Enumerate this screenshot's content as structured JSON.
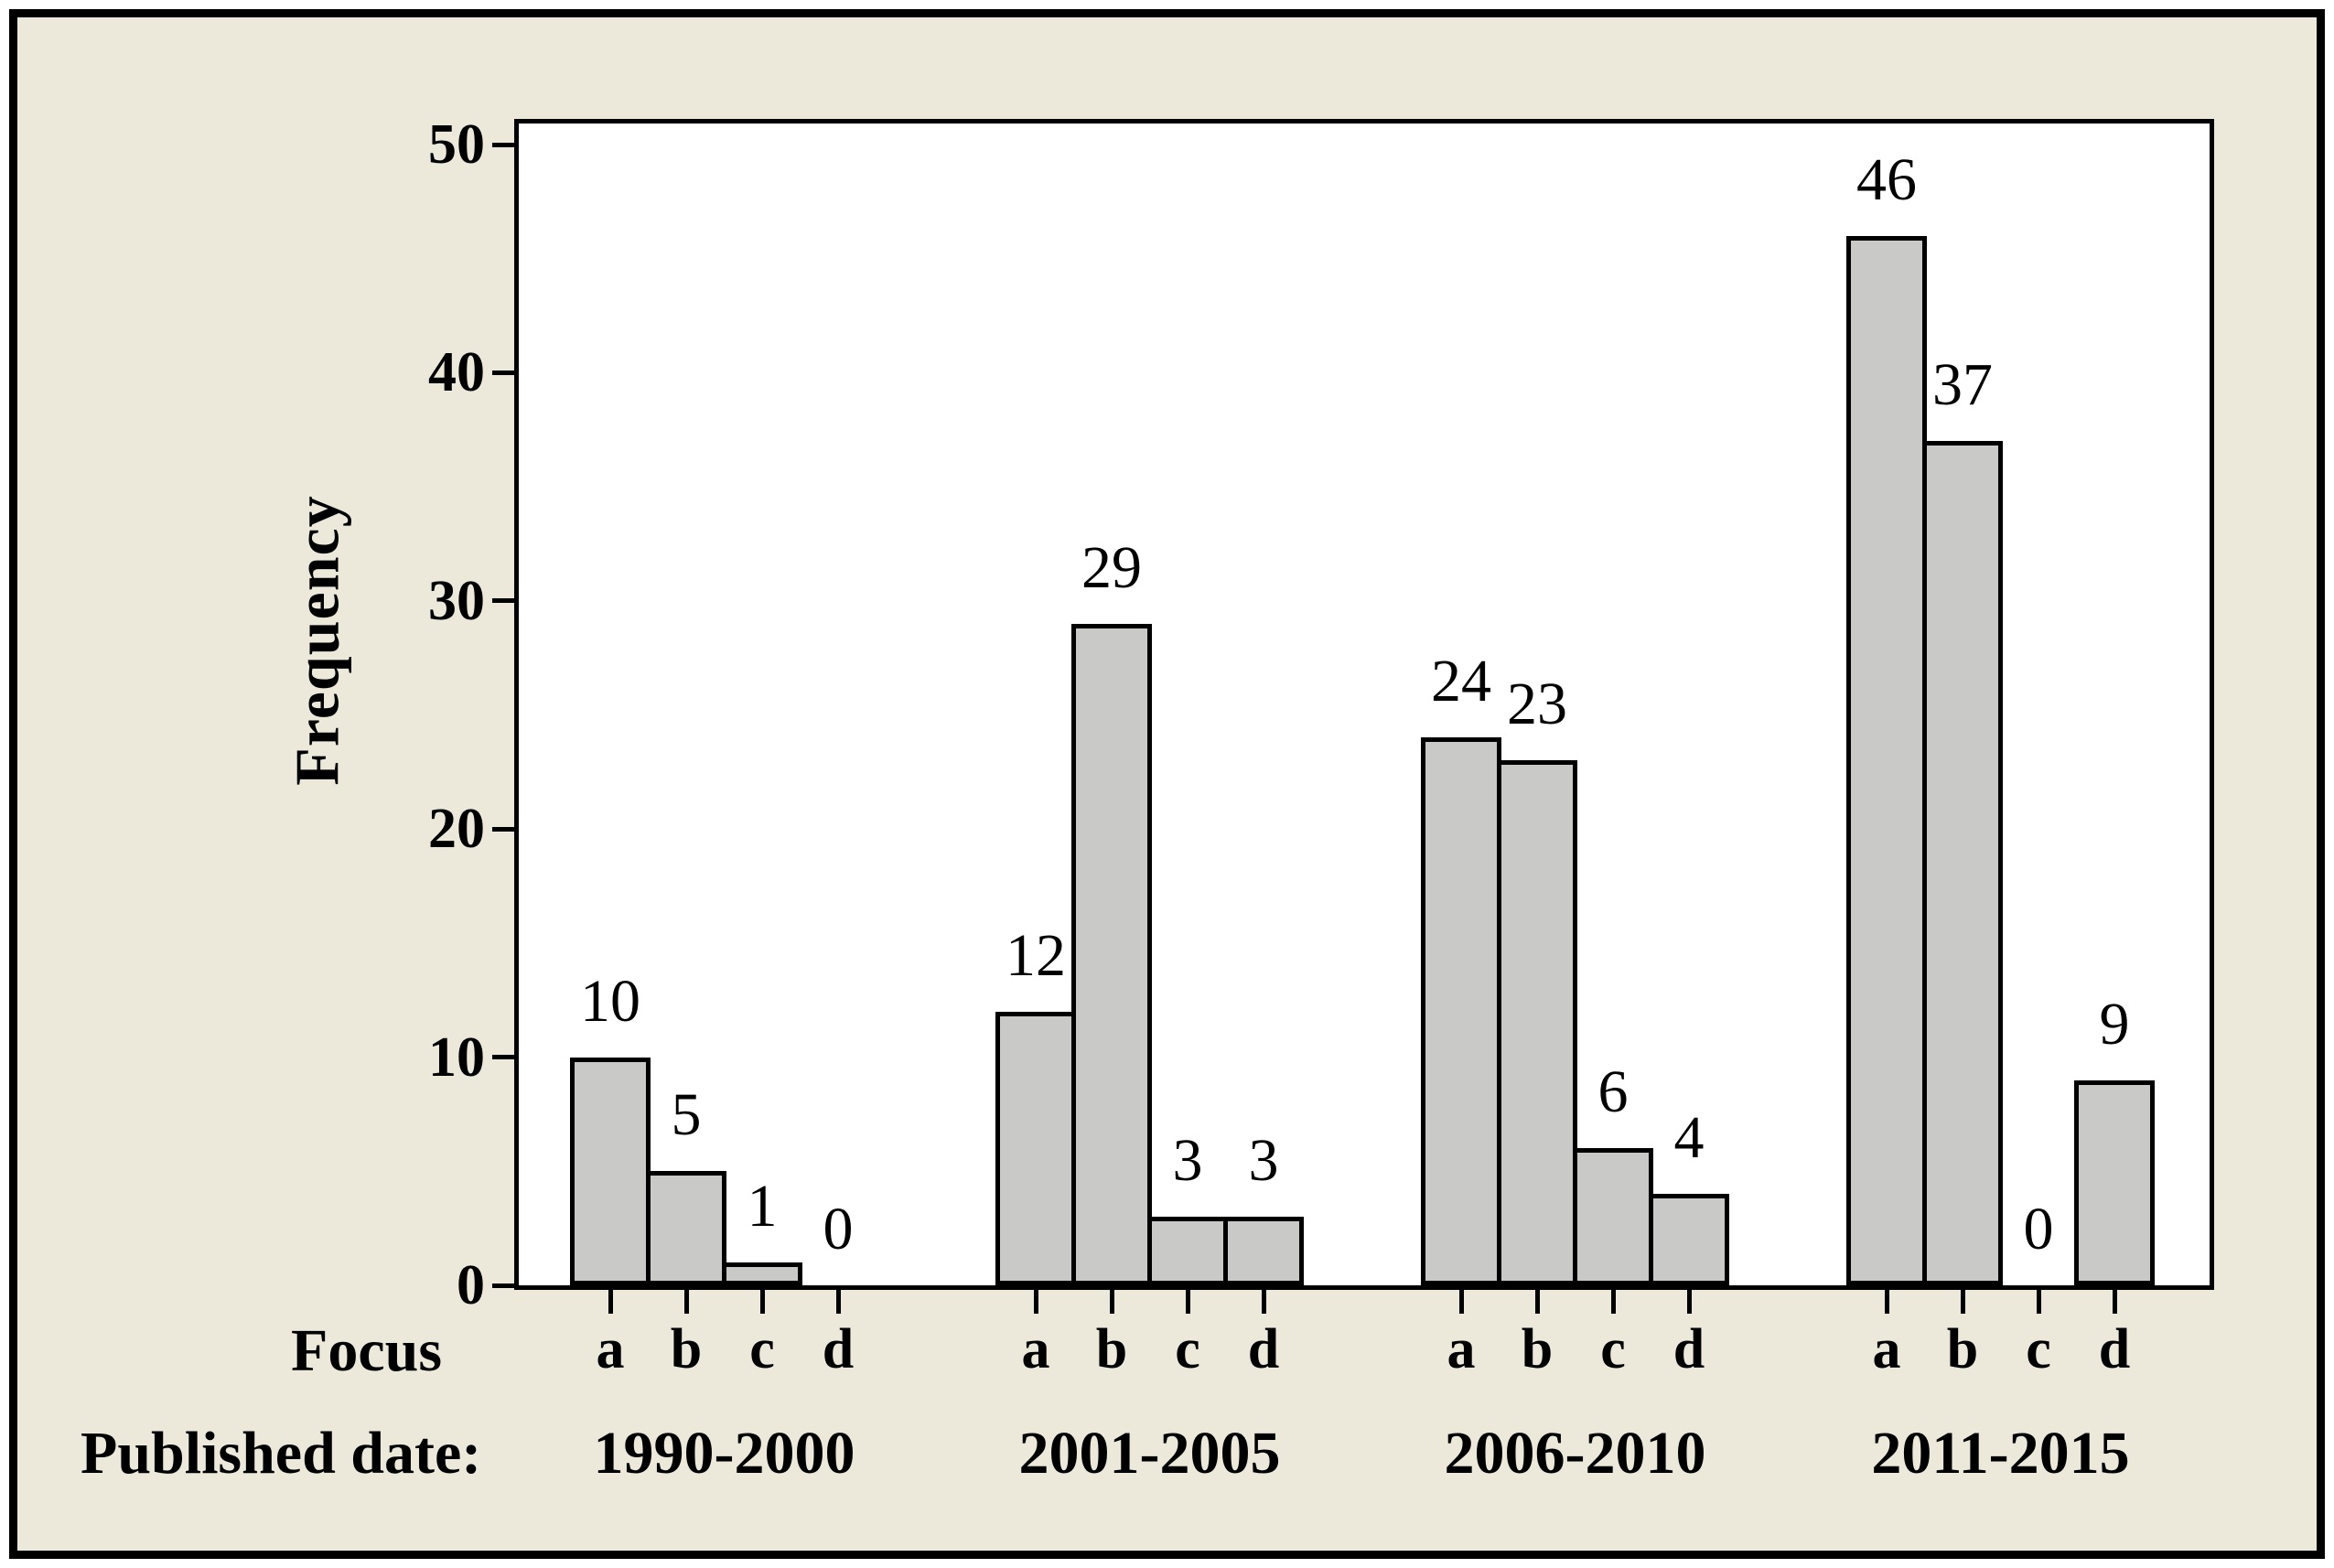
{
  "colors": {
    "canvas_background": "#ece8da",
    "plot_background": "#ffffff",
    "bar_fill": "#c9c9c7",
    "bar_border": "#000000",
    "frame_border": "#000000",
    "text": "#000000"
  },
  "chart_data": {
    "type": "bar",
    "title": "",
    "ylabel": "Frequency",
    "xlabel": "",
    "ylim": [
      0,
      51
    ],
    "yticks": [
      0,
      10,
      20,
      30,
      40,
      50
    ],
    "grid": "off",
    "legend": "none",
    "bar_value_labels": "shown above each bar",
    "categories": [
      "a",
      "b",
      "c",
      "d"
    ],
    "axis_rows": {
      "focus_label": "Focus",
      "published_label": "Published date:"
    },
    "groups": [
      {
        "period": "1990-2000",
        "values": [
          10,
          5,
          1,
          0
        ]
      },
      {
        "period": "2001-2005",
        "values": [
          12,
          29,
          3,
          3
        ]
      },
      {
        "period": "2006-2010",
        "values": [
          24,
          23,
          6,
          4
        ]
      },
      {
        "period": "2011-2015",
        "values": [
          46,
          37,
          0,
          9
        ]
      }
    ]
  }
}
